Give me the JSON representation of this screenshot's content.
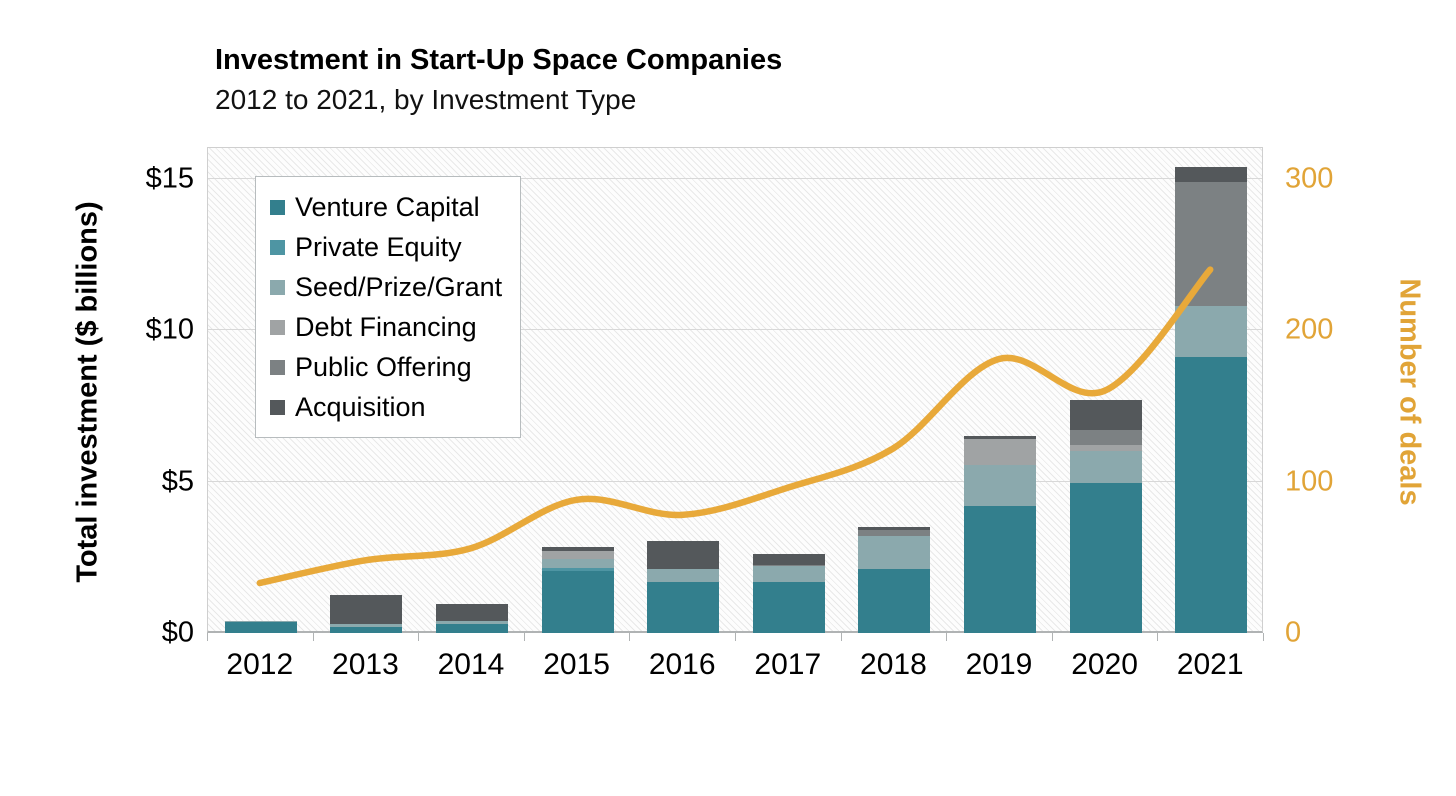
{
  "title": "Investment in Start-Up Space Companies",
  "subtitle": "2012 to 2021, by Investment Type",
  "left_axis": {
    "title": "Total investment ($ billions)",
    "ticks": [
      {
        "value": 0,
        "label": "$0"
      },
      {
        "value": 5,
        "label": "$5"
      },
      {
        "value": 10,
        "label": "$10"
      },
      {
        "value": 15,
        "label": "$15"
      }
    ],
    "max": 16.05,
    "text_color": "#000000"
  },
  "right_axis": {
    "title": "Number of deals",
    "ticks": [
      {
        "value": 0,
        "label": "0"
      },
      {
        "value": 100,
        "label": "100"
      },
      {
        "value": 200,
        "label": "200"
      },
      {
        "value": 300,
        "label": "300"
      }
    ],
    "max": 321,
    "text_color": "#e1a437"
  },
  "chart_data": {
    "type": "bar",
    "subtype": "stacked-bars-with-line-overlay",
    "categories": [
      "2012",
      "2013",
      "2014",
      "2015",
      "2016",
      "2017",
      "2018",
      "2019",
      "2020",
      "2021"
    ],
    "series": [
      {
        "name": "Venture Capital",
        "color": "#337f8d",
        "values": [
          0.35,
          0.2,
          0.3,
          2.05,
          1.7,
          1.7,
          2.1,
          4.2,
          4.95,
          9.1
        ]
      },
      {
        "name": "Private Equity",
        "color": "#4e95a3",
        "values": [
          0.0,
          0.0,
          0.0,
          0.1,
          0.0,
          0.0,
          0.0,
          0.0,
          0.0,
          0.0
        ]
      },
      {
        "name": "Seed/Prize/Grant",
        "color": "#8ba9ad",
        "values": [
          0.05,
          0.1,
          0.1,
          0.3,
          0.4,
          0.5,
          1.1,
          1.35,
          1.05,
          1.7
        ]
      },
      {
        "name": "Debt Financing",
        "color": "#a0a3a4",
        "values": [
          0.0,
          0.0,
          0.0,
          0.25,
          0.0,
          0.0,
          0.0,
          0.85,
          0.2,
          0.0
        ]
      },
      {
        "name": "Public Offering",
        "color": "#7c8183",
        "values": [
          0.0,
          0.0,
          0.0,
          0.0,
          0.0,
          0.05,
          0.2,
          0.0,
          0.5,
          4.1
        ]
      },
      {
        "name": "Acquisition",
        "color": "#54585b",
        "values": [
          0.0,
          0.95,
          0.55,
          0.15,
          0.95,
          0.35,
          0.1,
          0.1,
          1.0,
          0.5
        ]
      }
    ],
    "bar_totals": [
      0.4,
      1.25,
      0.95,
      2.85,
      3.05,
      2.6,
      3.5,
      6.5,
      7.7,
      15.4
    ],
    "line_series": {
      "name": "Number of deals",
      "color": "#e8a93a",
      "values": [
        33,
        48,
        56,
        88,
        78,
        96,
        122,
        181,
        160,
        240
      ]
    },
    "title": "Investment in Start-Up Space Companies",
    "subtitle": "2012 to 2021, by Investment Type",
    "xlabel": "",
    "ylabel_left": "Total investment ($ billions)",
    "ylabel_right": "Number of deals",
    "ylim_left": [
      0,
      16.05
    ],
    "ylim_right": [
      0,
      321
    ],
    "grid": "horizontal",
    "legend_position": "top-left-inside",
    "plot_background": "diagonal-hatch"
  }
}
